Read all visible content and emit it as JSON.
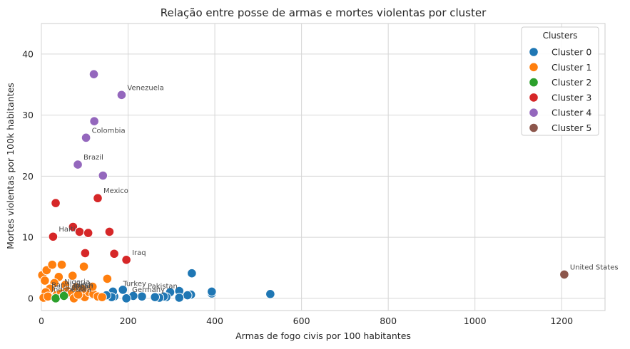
{
  "chart_data": {
    "type": "scatter",
    "title": "Relação entre posse de armas e mortes violentas por cluster",
    "xlabel": "Armas de fogo civis por 100 habitantes",
    "ylabel": "Mortes violentas por 100k habitantes",
    "xlim": [
      0,
      1300
    ],
    "ylim": [
      -2,
      45
    ],
    "xticks": [
      0,
      200,
      400,
      600,
      800,
      1000,
      1200
    ],
    "yticks": [
      0,
      10,
      20,
      30,
      40
    ],
    "grid": true,
    "legend": {
      "title": "Clusters",
      "position": "top-right"
    },
    "series": [
      {
        "name": "Cluster 0",
        "color": "#1f77b4",
        "points": [
          [
            347,
            4.1
          ],
          [
            528,
            0.7
          ],
          [
            393,
            0.8
          ],
          [
            393,
            1.1
          ],
          [
            345,
            0.6
          ],
          [
            337,
            0.5
          ],
          [
            318,
            1.2
          ],
          [
            318,
            0.1
          ],
          [
            297,
            1.0
          ],
          [
            288,
            0.2
          ],
          [
            282,
            0.3
          ],
          [
            272,
            0.1
          ],
          [
            262,
            0.2
          ],
          [
            232,
            0.3
          ],
          [
            212,
            0.4
          ],
          [
            196,
            0.0
          ],
          [
            188,
            1.4
          ],
          [
            168,
            0.3
          ],
          [
            165,
            1.1
          ],
          [
            162,
            0.2
          ],
          [
            150,
            0.5
          ]
        ]
      },
      {
        "name": "Cluster 1",
        "color": "#ff7f0e",
        "points": [
          [
            2,
            3.8
          ],
          [
            12,
            4.6
          ],
          [
            8,
            2.9
          ],
          [
            25,
            5.5
          ],
          [
            47,
            5.5
          ],
          [
            72,
            3.7
          ],
          [
            98,
            5.2
          ],
          [
            152,
            3.2
          ],
          [
            40,
            3.5
          ],
          [
            30,
            2.5
          ],
          [
            55,
            2.2
          ],
          [
            20,
            1.6
          ],
          [
            10,
            1.0
          ],
          [
            60,
            1.2
          ],
          [
            70,
            0.8
          ],
          [
            80,
            1.8
          ],
          [
            90,
            0.5
          ],
          [
            100,
            0.2
          ],
          [
            110,
            1.0
          ],
          [
            120,
            0.7
          ],
          [
            130,
            0.3
          ],
          [
            140,
            0.2
          ],
          [
            5,
            0.1
          ],
          [
            15,
            0.3
          ],
          [
            35,
            0.5
          ],
          [
            45,
            0.8
          ],
          [
            75,
            0.0
          ],
          [
            95,
            1.5
          ],
          [
            118,
            1.9
          ],
          [
            85,
            0.6
          ]
        ]
      },
      {
        "name": "Cluster 2",
        "color": "#2ca02c",
        "points": [
          [
            33,
            0.0
          ],
          [
            52,
            0.4
          ]
        ]
      },
      {
        "name": "Cluster 3",
        "color": "#d62728",
        "points": [
          [
            33,
            15.6
          ],
          [
            27,
            10.1
          ],
          [
            73,
            11.7
          ],
          [
            88,
            10.9
          ],
          [
            108,
            10.7
          ],
          [
            157,
            10.9
          ],
          [
            130,
            16.4
          ],
          [
            101,
            7.4
          ],
          [
            168,
            7.3
          ],
          [
            196,
            6.3
          ]
        ]
      },
      {
        "name": "Cluster 4",
        "color": "#9467bd",
        "points": [
          [
            121,
            36.7
          ],
          [
            185,
            33.3
          ],
          [
            122,
            29.0
          ],
          [
            103,
            26.3
          ],
          [
            84,
            21.9
          ],
          [
            142,
            20.1
          ]
        ]
      },
      {
        "name": "Cluster 5",
        "color": "#8c564b",
        "points": [
          [
            1206,
            3.9
          ]
        ]
      }
    ],
    "annotations": [
      {
        "text": "Venezuela",
        "x": 185,
        "y": 33.3
      },
      {
        "text": "Colombia",
        "x": 103,
        "y": 26.3
      },
      {
        "text": "Brazil",
        "x": 84,
        "y": 21.9
      },
      {
        "text": "Mexico",
        "x": 130,
        "y": 16.4
      },
      {
        "text": "Haiti",
        "x": 27,
        "y": 10.1
      },
      {
        "text": "Iraq",
        "x": 196,
        "y": 6.3
      },
      {
        "text": "United States",
        "x": 1206,
        "y": 3.9
      },
      {
        "text": "Turkey",
        "x": 175,
        "y": 1.2
      },
      {
        "text": "Pakistan",
        "x": 232,
        "y": 0.8
      },
      {
        "text": "Germany",
        "x": 196,
        "y": 0.2
      },
      {
        "text": "Nigeria",
        "x": 40,
        "y": 1.5
      },
      {
        "text": "Bangladesh",
        "x": 10,
        "y": 1.0
      },
      {
        "text": "India",
        "x": 60,
        "y": 0.9
      },
      {
        "text": "Japan",
        "x": 60,
        "y": 0.8
      },
      {
        "text": "Indonesia",
        "x": 10,
        "y": 0.3
      },
      {
        "text": "China",
        "x": 55,
        "y": 0.3
      }
    ]
  }
}
